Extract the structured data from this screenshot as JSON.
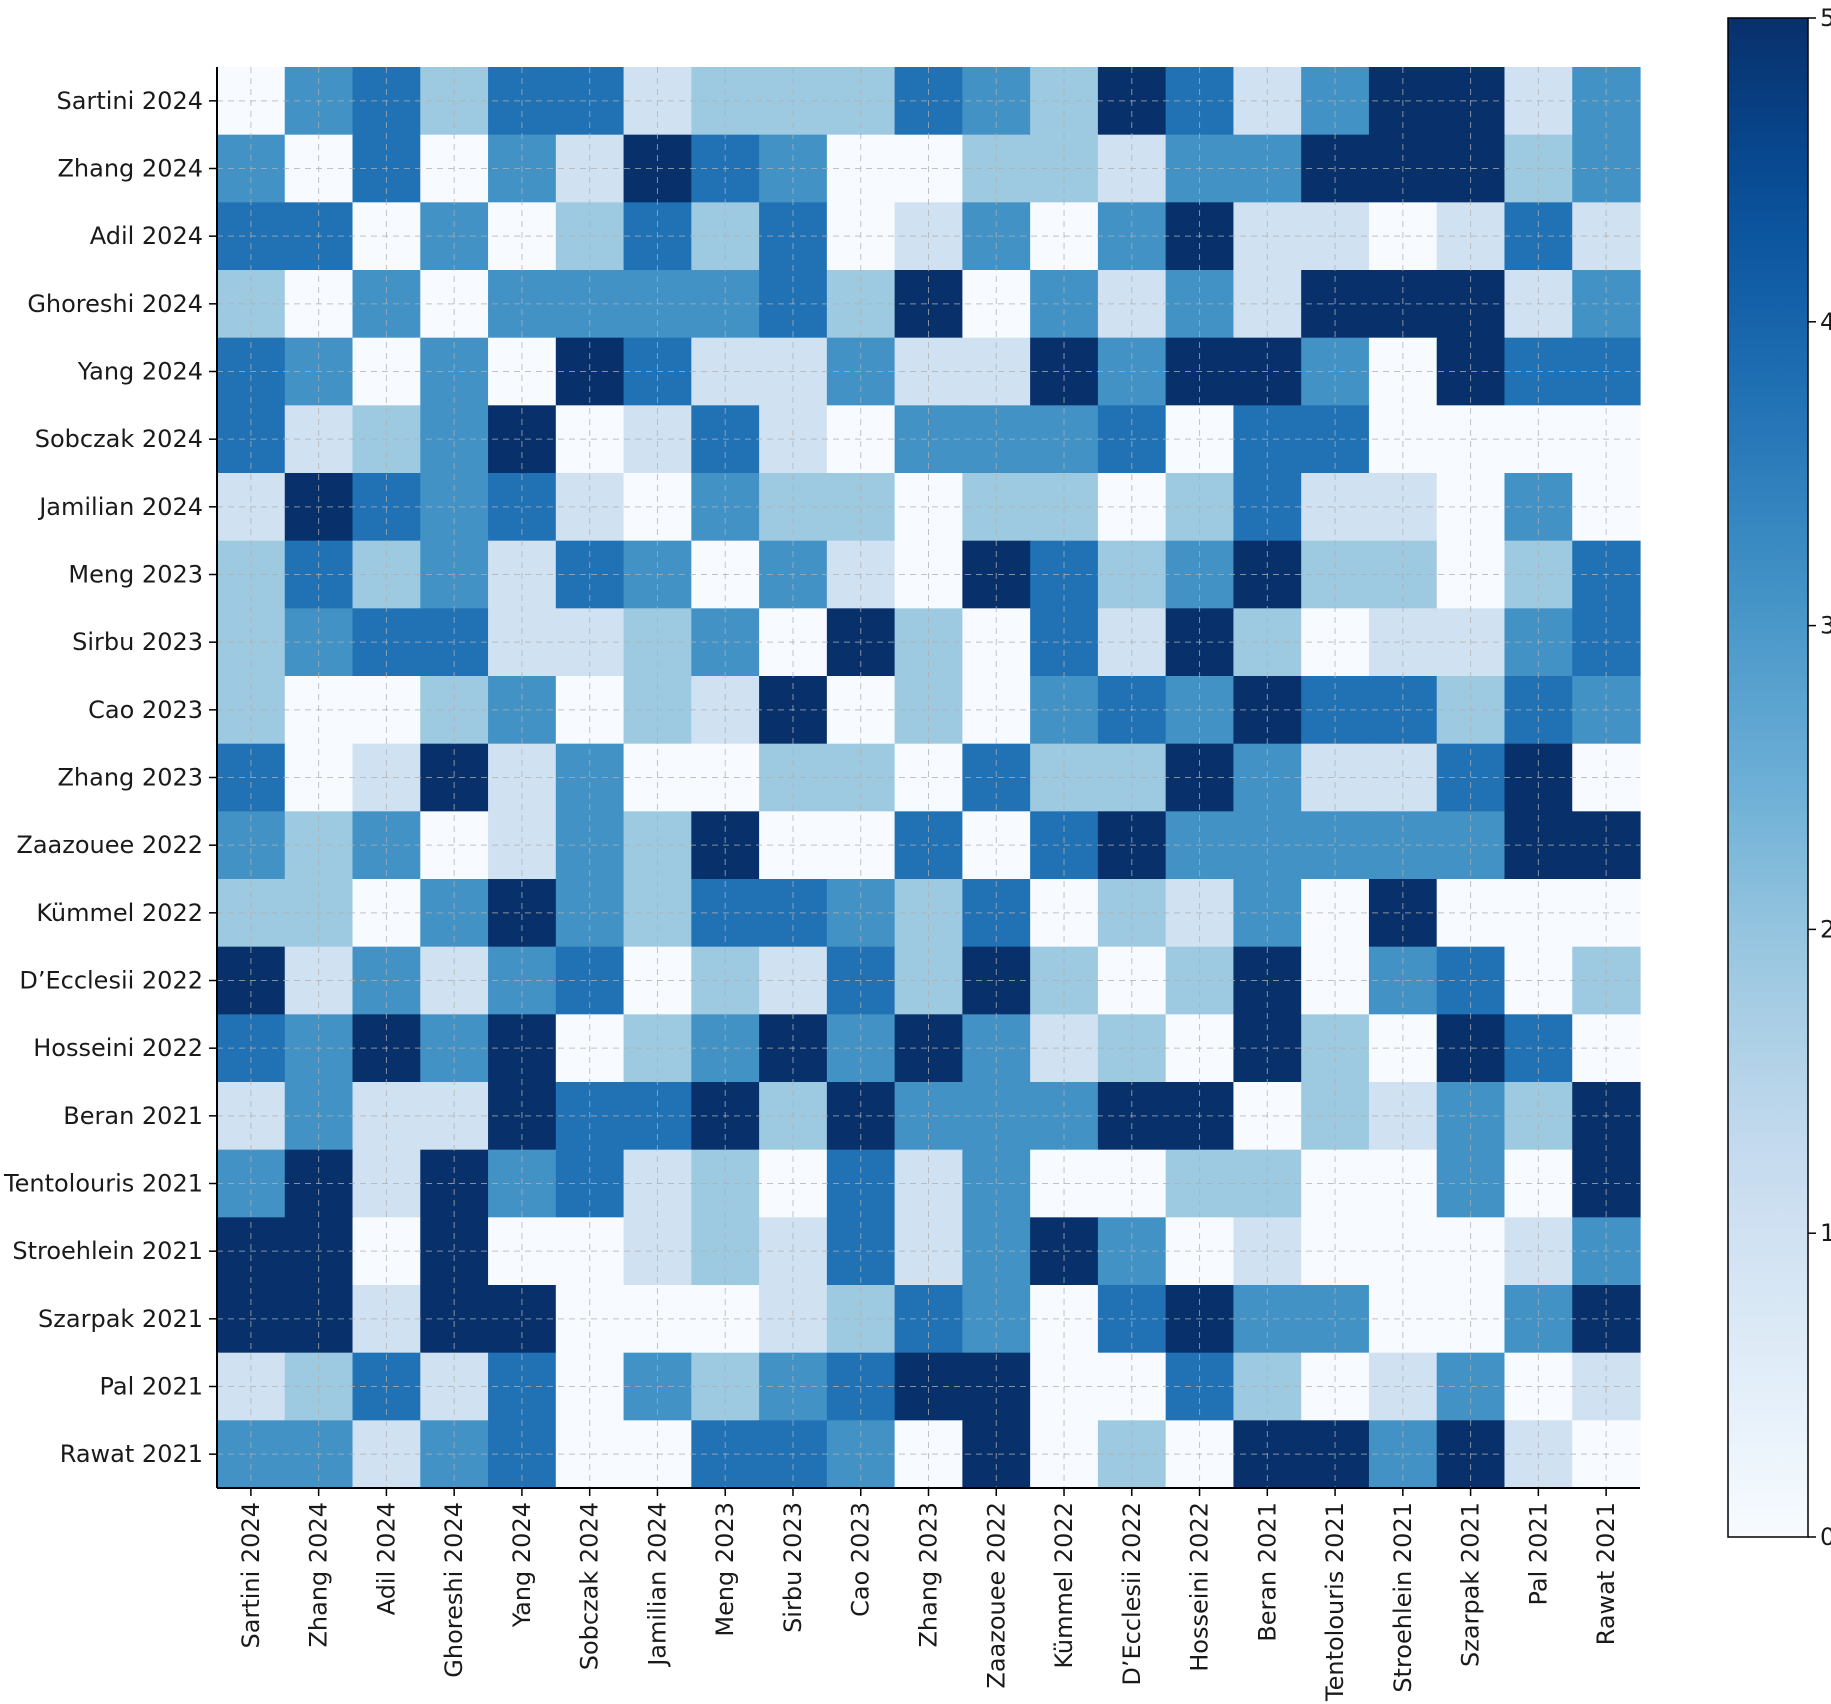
{
  "chart_data": {
    "type": "heatmap",
    "title": "",
    "xlabel": "",
    "ylabel": "",
    "rows": [
      "Sartini 2024",
      "Zhang 2024",
      "Adil 2024",
      "Ghoreshi 2024",
      "Yang 2024",
      "Sobczak 2024",
      "Jamilian 2024",
      "Meng 2023",
      "Sirbu 2023",
      "Cao 2023",
      "Zhang 2023",
      "Zaazouee 2022",
      "Kümmel 2022",
      "D’Ecclesii 2022",
      "Hosseini 2022",
      "Beran 2021",
      "Tentolouris 2021",
      "Stroehlein 2021",
      "Szarpak 2021",
      "Pal 2021",
      "Rawat 2021"
    ],
    "columns": [
      "Sartini 2024",
      "Zhang 2024",
      "Adil 2024",
      "Ghoreshi 2024",
      "Yang 2024",
      "Sobczak 2024",
      "Jamilian 2024",
      "Meng 2023",
      "Sirbu 2023",
      "Cao 2023",
      "Zhang 2023",
      "Zaazouee 2022",
      "Kümmel 2022",
      "D’Ecclesii 2022",
      "Hosseini 2022",
      "Beran 2021",
      "Tentolouris 2021",
      "Stroehlein 2021",
      "Szarpak 2021",
      "Pal 2021",
      "Rawat 2021"
    ],
    "values": [
      [
        0,
        3,
        4,
        2,
        4,
        4,
        1,
        2,
        2,
        2,
        4,
        3,
        2,
        5,
        4,
        1,
        3,
        5,
        5,
        1,
        3
      ],
      [
        3,
        0,
        4,
        0,
        3,
        1,
        5,
        4,
        3,
        0,
        0,
        2,
        2,
        1,
        3,
        3,
        5,
        5,
        5,
        2,
        3
      ],
      [
        4,
        4,
        0,
        3,
        0,
        2,
        4,
        2,
        4,
        0,
        1,
        3,
        0,
        3,
        5,
        1,
        1,
        0,
        1,
        4,
        1
      ],
      [
        2,
        0,
        3,
        0,
        3,
        3,
        3,
        3,
        4,
        2,
        5,
        0,
        3,
        1,
        3,
        1,
        5,
        5,
        5,
        1,
        3
      ],
      [
        4,
        3,
        0,
        3,
        0,
        5,
        4,
        1,
        1,
        3,
        1,
        1,
        5,
        3,
        5,
        5,
        3,
        0,
        5,
        4,
        4
      ],
      [
        4,
        1,
        2,
        3,
        5,
        0,
        1,
        4,
        1,
        0,
        3,
        3,
        3,
        4,
        0,
        4,
        4,
        0,
        0,
        0,
        0
      ],
      [
        1,
        5,
        4,
        3,
        4,
        1,
        0,
        3,
        2,
        2,
        0,
        2,
        2,
        0,
        2,
        4,
        1,
        1,
        0,
        3,
        0
      ],
      [
        2,
        4,
        2,
        3,
        1,
        4,
        3,
        0,
        3,
        1,
        0,
        5,
        4,
        2,
        3,
        5,
        2,
        2,
        0,
        2,
        4
      ],
      [
        2,
        3,
        4,
        4,
        1,
        1,
        2,
        3,
        0,
        5,
        2,
        0,
        4,
        1,
        5,
        2,
        0,
        1,
        1,
        3,
        4
      ],
      [
        2,
        0,
        0,
        2,
        3,
        0,
        2,
        1,
        5,
        0,
        2,
        0,
        3,
        4,
        3,
        5,
        4,
        4,
        2,
        4,
        3
      ],
      [
        4,
        0,
        1,
        5,
        1,
        3,
        0,
        0,
        2,
        2,
        0,
        4,
        2,
        2,
        5,
        3,
        1,
        1,
        4,
        5,
        0
      ],
      [
        3,
        2,
        3,
        0,
        1,
        3,
        2,
        5,
        0,
        0,
        4,
        0,
        4,
        5,
        3,
        3,
        3,
        3,
        3,
        5,
        5
      ],
      [
        2,
        2,
        0,
        3,
        5,
        3,
        2,
        4,
        4,
        3,
        2,
        4,
        0,
        2,
        1,
        3,
        0,
        5,
        0,
        0,
        0
      ],
      [
        5,
        1,
        3,
        1,
        3,
        4,
        0,
        2,
        1,
        4,
        2,
        5,
        2,
        0,
        2,
        5,
        0,
        3,
        4,
        0,
        2
      ],
      [
        4,
        3,
        5,
        3,
        5,
        0,
        2,
        3,
        5,
        3,
        5,
        3,
        1,
        2,
        0,
        5,
        2,
        0,
        5,
        4,
        0
      ],
      [
        1,
        3,
        1,
        1,
        5,
        4,
        4,
        5,
        2,
        5,
        3,
        3,
        3,
        5,
        5,
        0,
        2,
        1,
        3,
        2,
        5
      ],
      [
        3,
        5,
        1,
        5,
        3,
        4,
        1,
        2,
        0,
        4,
        1,
        3,
        0,
        0,
        2,
        2,
        0,
        0,
        3,
        0,
        5
      ],
      [
        5,
        5,
        0,
        5,
        0,
        0,
        1,
        2,
        1,
        4,
        1,
        3,
        5,
        3,
        0,
        1,
        0,
        0,
        0,
        1,
        3
      ],
      [
        5,
        5,
        1,
        5,
        5,
        0,
        0,
        0,
        1,
        2,
        4,
        3,
        0,
        4,
        5,
        3,
        3,
        0,
        0,
        3,
        5
      ],
      [
        1,
        2,
        4,
        1,
        4,
        0,
        3,
        2,
        3,
        4,
        5,
        5,
        0,
        0,
        4,
        2,
        0,
        1,
        3,
        0,
        1
      ],
      [
        3,
        3,
        1,
        3,
        4,
        0,
        0,
        4,
        4,
        3,
        0,
        5,
        0,
        2,
        0,
        5,
        5,
        3,
        5,
        1,
        0
      ]
    ],
    "colormap": "Blues",
    "vmin": 0,
    "vmax": 5,
    "colorbar_ticks": [
      "0",
      "1",
      "2",
      "3",
      "4",
      "5"
    ],
    "colorscale": [
      "#f7fbff",
      "#d0e1f2",
      "#9ecae1",
      "#4292c6",
      "#2171b5",
      "#08306b"
    ],
    "grid": true,
    "grid_style": "dashed"
  }
}
